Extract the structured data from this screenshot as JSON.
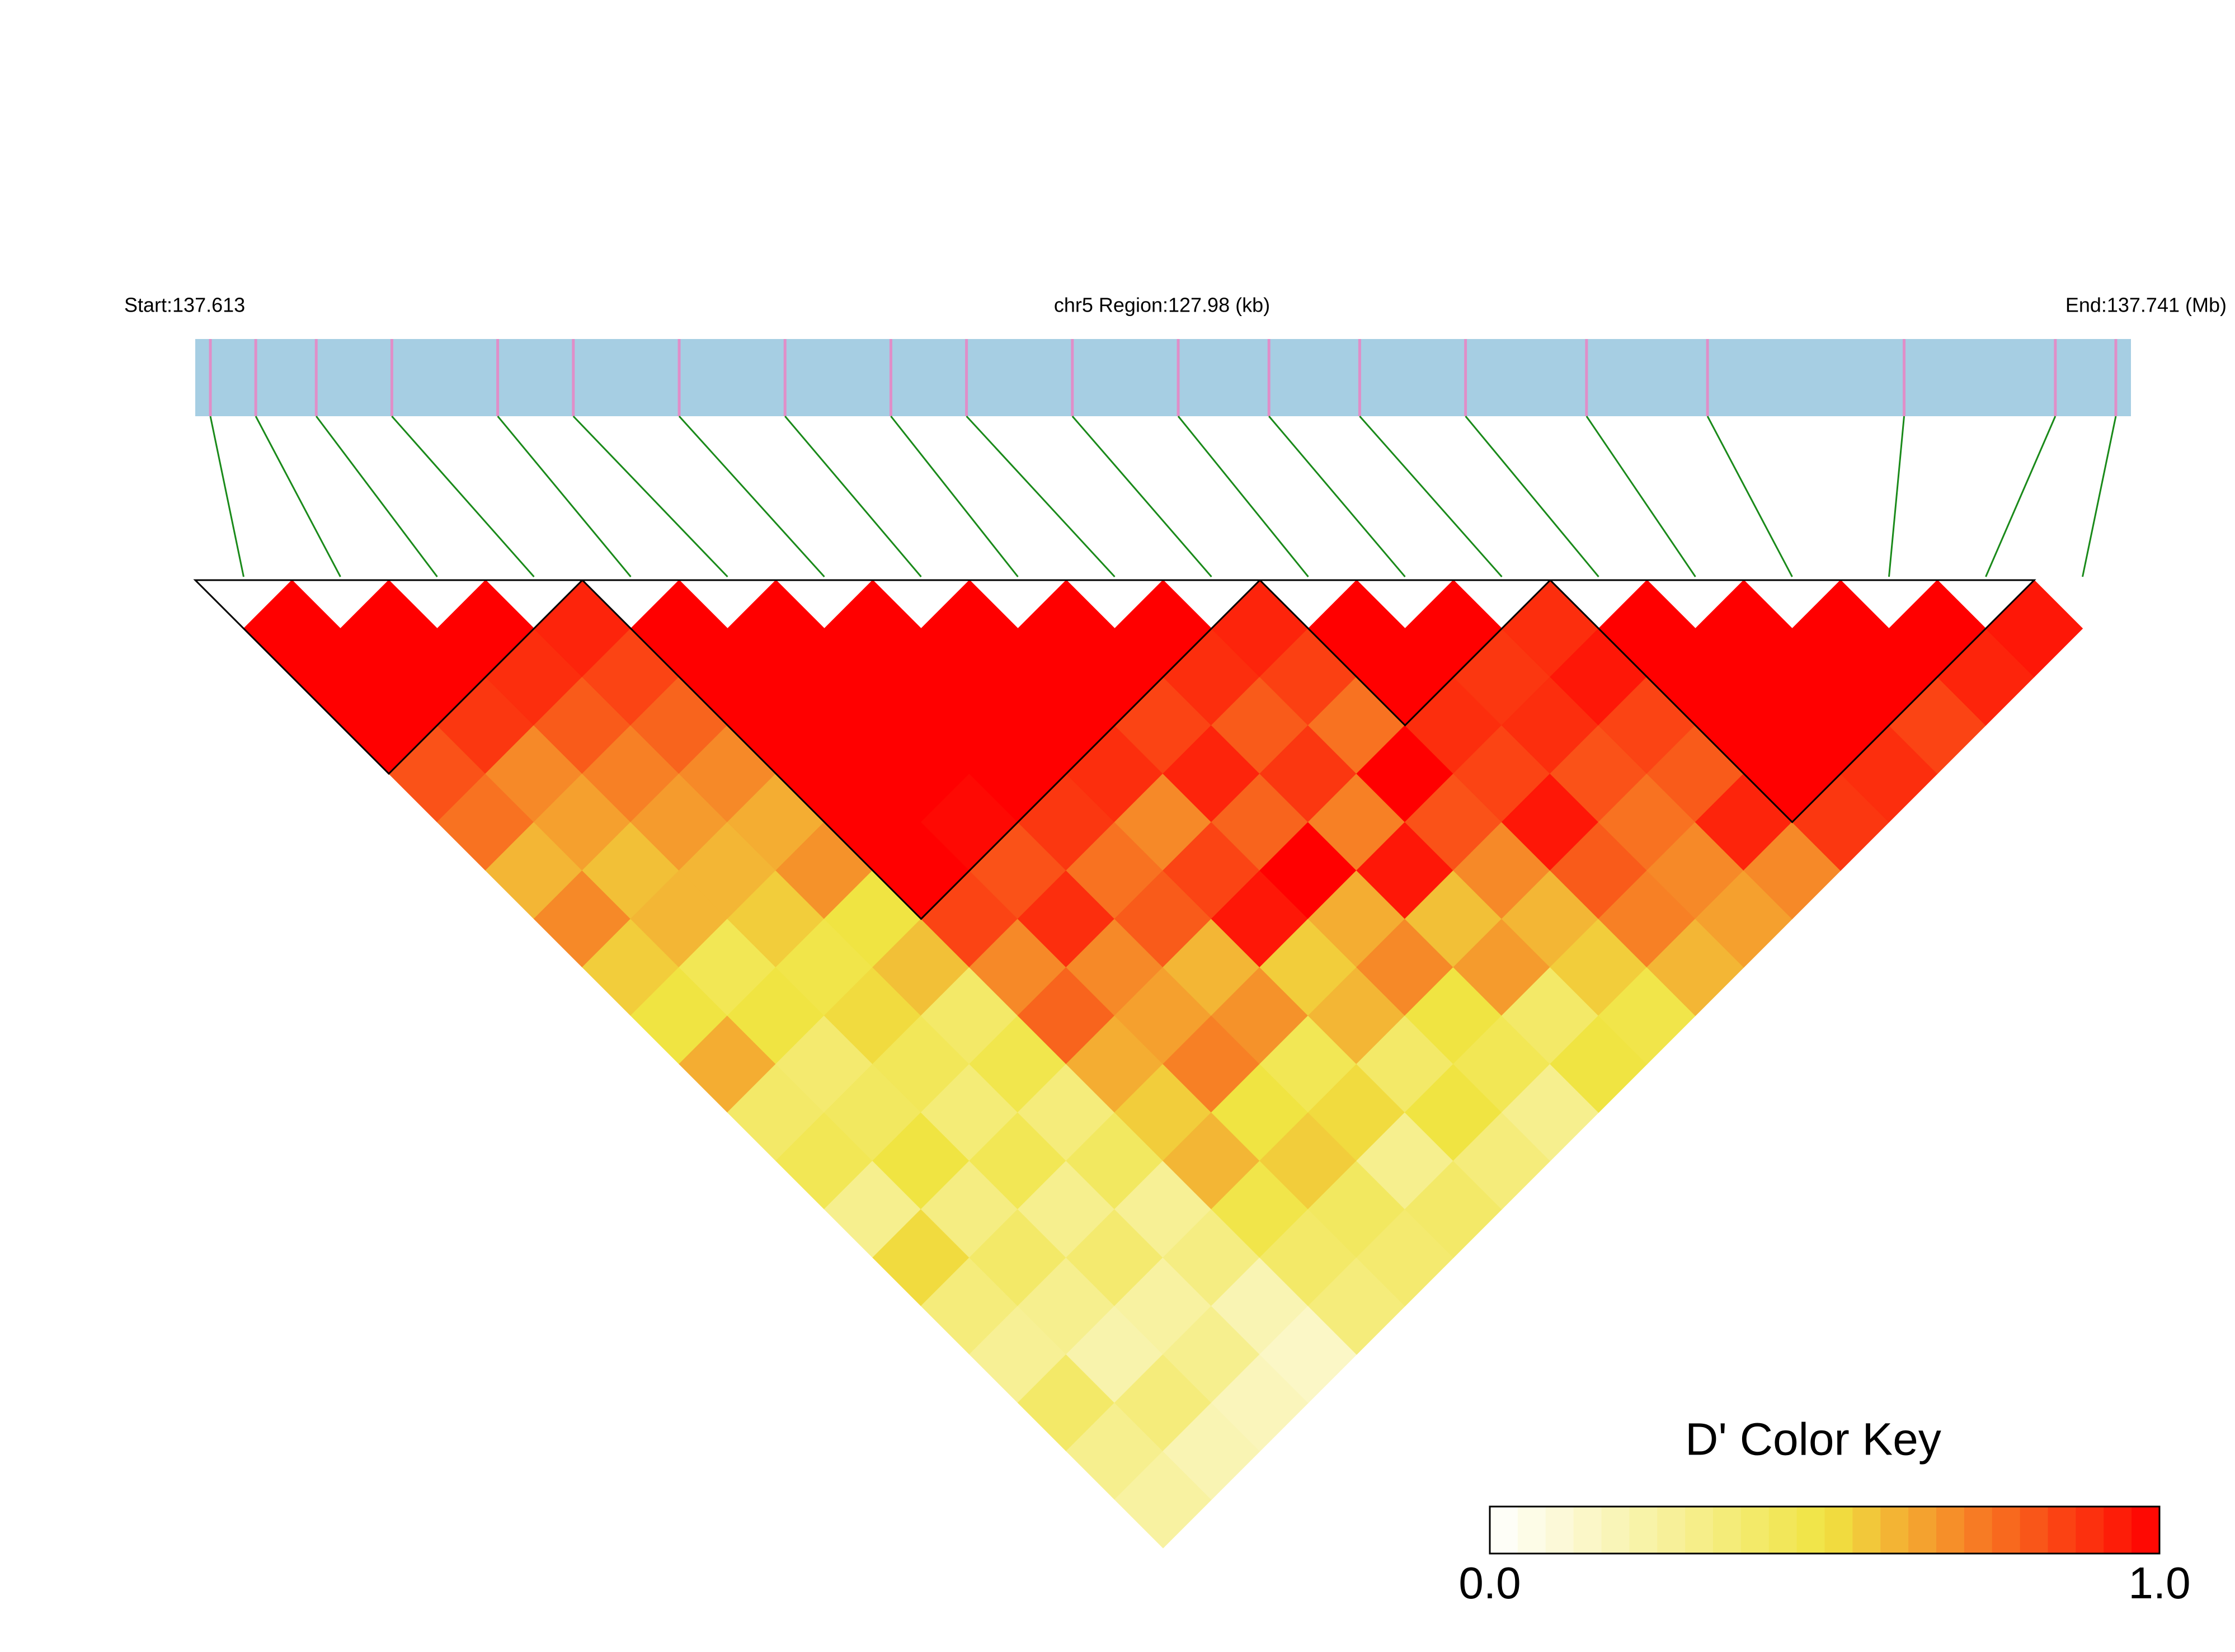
{
  "chart_data": {
    "type": "ld-heatmap",
    "start_label": "Start:137.613",
    "region_label": "chr5 Region:127.98 (kb)",
    "end_label": "End:137.741 (Mb)",
    "xlim": [
      137.613,
      137.741
    ],
    "positions": [
      137.614,
      137.617,
      137.621,
      137.626,
      137.633,
      137.638,
      137.645,
      137.652,
      137.659,
      137.664,
      137.671,
      137.678,
      137.684,
      137.69,
      137.697,
      137.705,
      137.713,
      137.726,
      137.736,
      137.74
    ],
    "matrix": [
      [
        1,
        1,
        1,
        0.82,
        0.75,
        0.6,
        0.7,
        0.55,
        0.5,
        0.62,
        0.4,
        0.45,
        0.3,
        0.52,
        0.35,
        0.28,
        0.4,
        0.3,
        0.25
      ],
      [
        1,
        1,
        0.88,
        0.7,
        0.65,
        0.58,
        0.6,
        0.45,
        0.5,
        0.38,
        0.42,
        0.5,
        0.33,
        0.4,
        0.3,
        0.22,
        0.35,
        0.2
      ],
      [
        1,
        0.9,
        0.8,
        0.72,
        0.66,
        0.6,
        0.55,
        0.48,
        0.52,
        0.44,
        0.36,
        0.45,
        0.3,
        0.38,
        0.25,
        0.3,
        0.18
      ],
      [
        0.92,
        0.85,
        0.78,
        0.7,
        0.62,
        0.68,
        0.5,
        0.58,
        0.4,
        0.47,
        0.35,
        0.42,
        0.28,
        0.33,
        0.2,
        0.15
      ],
      [
        1,
        1,
        1,
        1,
        1,
        1,
        0.85,
        0.7,
        0.78,
        0.62,
        0.55,
        0.6,
        0.48,
        0.4,
        0.35
      ],
      [
        1,
        1,
        1,
        1,
        0.98,
        0.82,
        0.9,
        0.7,
        0.65,
        0.72,
        0.5,
        0.55,
        0.42,
        0.38
      ],
      [
        1,
        1,
        1,
        1,
        0.88,
        0.75,
        0.8,
        0.6,
        0.68,
        0.45,
        0.52,
        0.3,
        0.4
      ],
      [
        1,
        1,
        1,
        0.9,
        0.7,
        0.85,
        0.95,
        0.55,
        0.6,
        0.4,
        0.5,
        0.35
      ],
      [
        1,
        1,
        0.85,
        0.92,
        0.78,
        1,
        0.62,
        0.7,
        0.5,
        0.45,
        0.3
      ],
      [
        1,
        0.9,
        0.8,
        0.88,
        0.72,
        0.95,
        0.58,
        0.66,
        0.4,
        0.5
      ],
      [
        0.92,
        0.86,
        0.75,
        1,
        0.82,
        0.7,
        0.6,
        0.55,
        0.48
      ],
      [
        1,
        1,
        0.9,
        0.85,
        0.95,
        0.8,
        0.72,
        0.6
      ],
      [
        1,
        0.88,
        0.9,
        0.82,
        0.75,
        0.7,
        0.65
      ],
      [
        0.9,
        0.95,
        0.85,
        0.8,
        0.92,
        0.7
      ],
      [
        1,
        1,
        1,
        1,
        0.88
      ],
      [
        1,
        1,
        1,
        0.9
      ],
      [
        1,
        1,
        0.85
      ],
      [
        1,
        0.92
      ],
      [
        0.95
      ]
    ],
    "blocks": [
      [
        0,
        3
      ],
      [
        4,
        10
      ],
      [
        11,
        13
      ],
      [
        14,
        18
      ]
    ],
    "colors": [
      "#ffffff",
      "#f0e442",
      "#ff0000"
    ],
    "bar_color": "#a6cee3",
    "snp_color": "#e08ec8",
    "link_color": "#1a8a1a",
    "key": {
      "title": "D' Color Key",
      "lim": [
        0,
        1
      ],
      "ticks": [
        {
          "value": 0,
          "label": "0.0"
        },
        {
          "value": 1,
          "label": "1.0"
        }
      ]
    }
  }
}
